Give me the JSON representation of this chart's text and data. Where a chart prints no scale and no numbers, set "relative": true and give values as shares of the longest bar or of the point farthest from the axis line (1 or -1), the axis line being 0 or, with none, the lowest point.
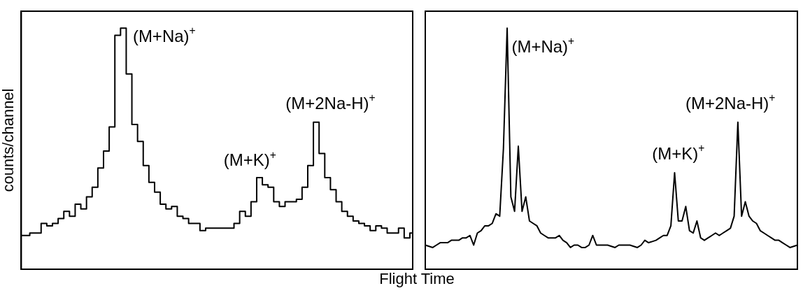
{
  "chart_data": [
    {
      "type": "step",
      "ylabel": "counts/channel",
      "xlabel": "Flight Time",
      "relative": true,
      "color": "#000000",
      "tick_labels": false,
      "categories": [
        null,
        null,
        null,
        null,
        null,
        null,
        null,
        null,
        null,
        null,
        null,
        null,
        null,
        null,
        null,
        null,
        null,
        null,
        null,
        null,
        null,
        null,
        null,
        null,
        null,
        null,
        null,
        null,
        null,
        null,
        null,
        null,
        null,
        null,
        null,
        null,
        null,
        null,
        null,
        null,
        null,
        null,
        null,
        null,
        null,
        null,
        null,
        null,
        null,
        null,
        null,
        null,
        null,
        null,
        null,
        null,
        null,
        null,
        null,
        null,
        null,
        null,
        null,
        null,
        null,
        null,
        null,
        null,
        null,
        null
      ],
      "values": [
        0.14,
        0.14,
        0.15,
        0.15,
        0.19,
        0.18,
        0.19,
        0.21,
        0.24,
        0.22,
        0.27,
        0.25,
        0.3,
        0.34,
        0.42,
        0.49,
        0.59,
        0.97,
        1.0,
        0.81,
        0.6,
        0.53,
        0.43,
        0.36,
        0.32,
        0.27,
        0.25,
        0.26,
        0.22,
        0.21,
        0.19,
        0.19,
        0.16,
        0.17,
        0.17,
        0.17,
        0.17,
        0.17,
        0.19,
        0.24,
        0.22,
        0.28,
        0.38,
        0.35,
        0.34,
        0.28,
        0.26,
        0.28,
        0.28,
        0.29,
        0.34,
        0.43,
        0.61,
        0.48,
        0.38,
        0.33,
        0.28,
        0.24,
        0.22,
        0.2,
        0.19,
        0.18,
        0.16,
        0.18,
        0.17,
        0.15,
        0.15,
        0.17,
        0.13,
        0.15
      ],
      "annotations": [
        "(M+Na)$^{+}$",
        "(M+K)$^{+}$",
        "(M+2Na-H)$^{+}$"
      ]
    },
    {
      "type": "line",
      "relative": true,
      "color": "#000000",
      "tick_labels": false,
      "categories": [
        null,
        null,
        null,
        null,
        null,
        null,
        null,
        null,
        null,
        null,
        null,
        null,
        null,
        null,
        null,
        null,
        null,
        null,
        null,
        null,
        null,
        null,
        null,
        null,
        null,
        null,
        null,
        null,
        null,
        null,
        null,
        null,
        null,
        null,
        null,
        null,
        null,
        null,
        null,
        null,
        null,
        null,
        null,
        null,
        null,
        null,
        null,
        null,
        null,
        null,
        null,
        null,
        null,
        null,
        null,
        null,
        null,
        null,
        null,
        null,
        null,
        null,
        null,
        null,
        null,
        null,
        null,
        null,
        null,
        null,
        null,
        null,
        null,
        null,
        null,
        null,
        null,
        null,
        null,
        null,
        null,
        null,
        null,
        null,
        null,
        null,
        null,
        null,
        null,
        null,
        null,
        null,
        null,
        null,
        null,
        null,
        null,
        null,
        null,
        null,
        null
      ],
      "values": [
        0.1,
        0.095,
        0.09,
        0.1,
        0.11,
        0.11,
        0.11,
        0.12,
        0.12,
        0.12,
        0.13,
        0.13,
        0.14,
        0.1,
        0.15,
        0.16,
        0.18,
        0.18,
        0.19,
        0.23,
        0.22,
        0.5,
        1.0,
        0.3,
        0.24,
        0.51,
        0.24,
        0.3,
        0.2,
        0.19,
        0.18,
        0.15,
        0.14,
        0.13,
        0.13,
        0.13,
        0.14,
        0.12,
        0.11,
        0.09,
        0.1,
        0.1,
        0.09,
        0.09,
        0.1,
        0.14,
        0.1,
        0.1,
        0.1,
        0.1,
        0.095,
        0.09,
        0.1,
        0.1,
        0.1,
        0.1,
        0.095,
        0.09,
        0.1,
        0.12,
        0.11,
        0.115,
        0.12,
        0.13,
        0.14,
        0.14,
        0.18,
        0.4,
        0.2,
        0.2,
        0.26,
        0.16,
        0.15,
        0.2,
        0.13,
        0.12,
        0.13,
        0.14,
        0.15,
        0.14,
        0.15,
        0.16,
        0.17,
        0.22,
        0.61,
        0.22,
        0.28,
        0.22,
        0.2,
        0.19,
        0.16,
        0.15,
        0.14,
        0.13,
        0.12,
        0.12,
        0.11,
        0.1,
        0.09,
        0.095,
        0.1
      ],
      "annotations": [
        "(M+Na)$^{+}$",
        "(M+K)$^{+}$",
        "(M+2Na-H)$^{+}$"
      ]
    }
  ]
}
